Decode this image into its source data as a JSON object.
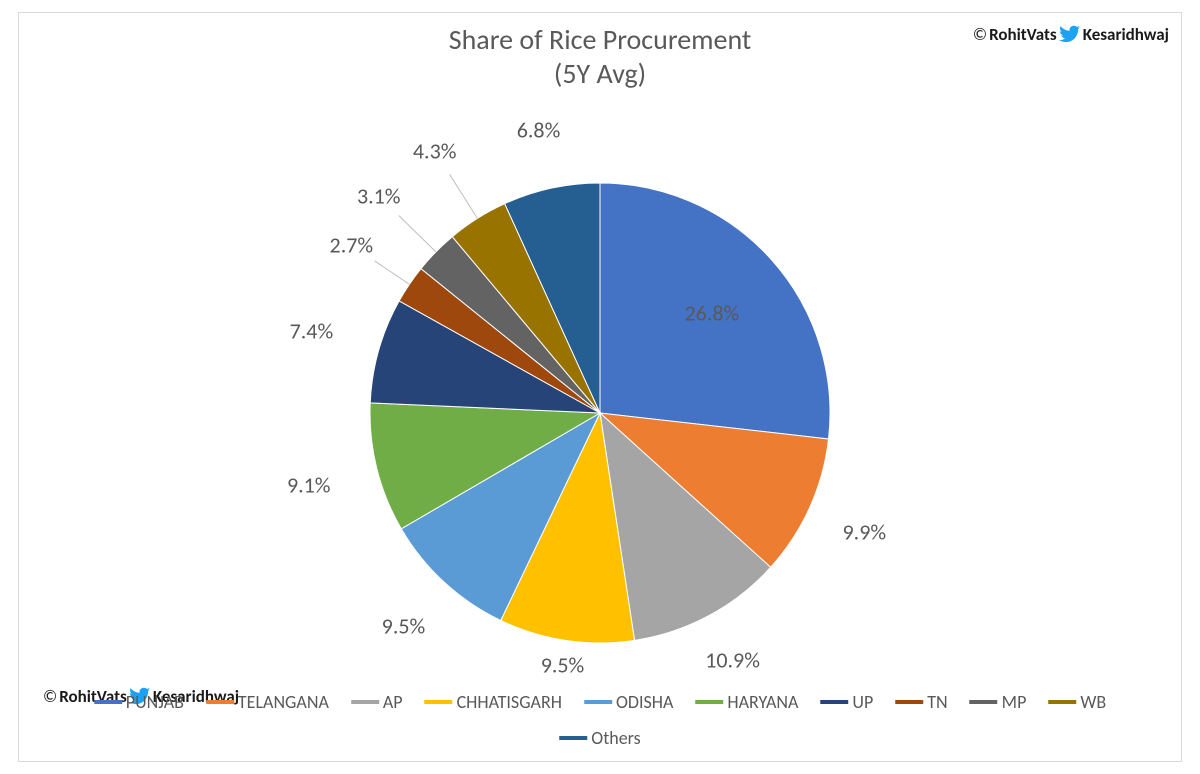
{
  "watermark": {
    "copyright_symbol": "©",
    "author": "RohitVats",
    "twitter_handle": "Kesaridhwaj",
    "twitter_icon_color": "#1da1f2"
  },
  "chart": {
    "type": "pie",
    "title_line1": "Share of Rice Procurement",
    "title_line2": "(5Y Avg)",
    "title_fontsize": 28,
    "title_color": "#595959",
    "label_fontsize": 22,
    "label_color": "#595959",
    "legend_fontsize": 18,
    "background_color": "#ffffff",
    "border_color": "#d9d9d9",
    "pie_radius": 230,
    "start_angle_deg": -90,
    "slices": [
      {
        "name": "PUNJAB",
        "value": 26.8,
        "label": "26.8%",
        "color": "#4472c4",
        "label_r": 150,
        "leader": false
      },
      {
        "name": "TELANGANA",
        "value": 9.9,
        "label": "9.9%",
        "color": "#ed7d31",
        "label_r": 290,
        "leader": false
      },
      {
        "name": "AP",
        "value": 10.9,
        "label": "10.9%",
        "color": "#a5a5a5",
        "label_r": 280,
        "leader": false
      },
      {
        "name": "CHHATISGARH",
        "value": 9.5,
        "label": "9.5%",
        "color": "#ffc000",
        "label_r": 255,
        "leader": false
      },
      {
        "name": "ODISHA",
        "value": 9.5,
        "label": "9.5%",
        "color": "#5b9bd5",
        "label_r": 290,
        "leader": false
      },
      {
        "name": "HARYANA",
        "value": 9.1,
        "label": "9.1%",
        "color": "#70ad47",
        "label_r": 300,
        "leader": false
      },
      {
        "name": "UP",
        "value": 7.4,
        "label": "7.4%",
        "color": "#264478",
        "label_r": 300,
        "leader": false
      },
      {
        "name": "TN",
        "value": 2.7,
        "label": "2.7%",
        "color": "#9e480e",
        "label_r": 300,
        "leader": true
      },
      {
        "name": "MP",
        "value": 3.1,
        "label": "3.1%",
        "color": "#636363",
        "label_r": 310,
        "leader": true
      },
      {
        "name": "WB",
        "value": 4.3,
        "label": "4.3%",
        "color": "#997300",
        "label_r": 310,
        "leader": true
      },
      {
        "name": "Others",
        "value": 6.8,
        "label": "6.8%",
        "color": "#255e91",
        "label_r": 290,
        "leader": false
      }
    ]
  }
}
